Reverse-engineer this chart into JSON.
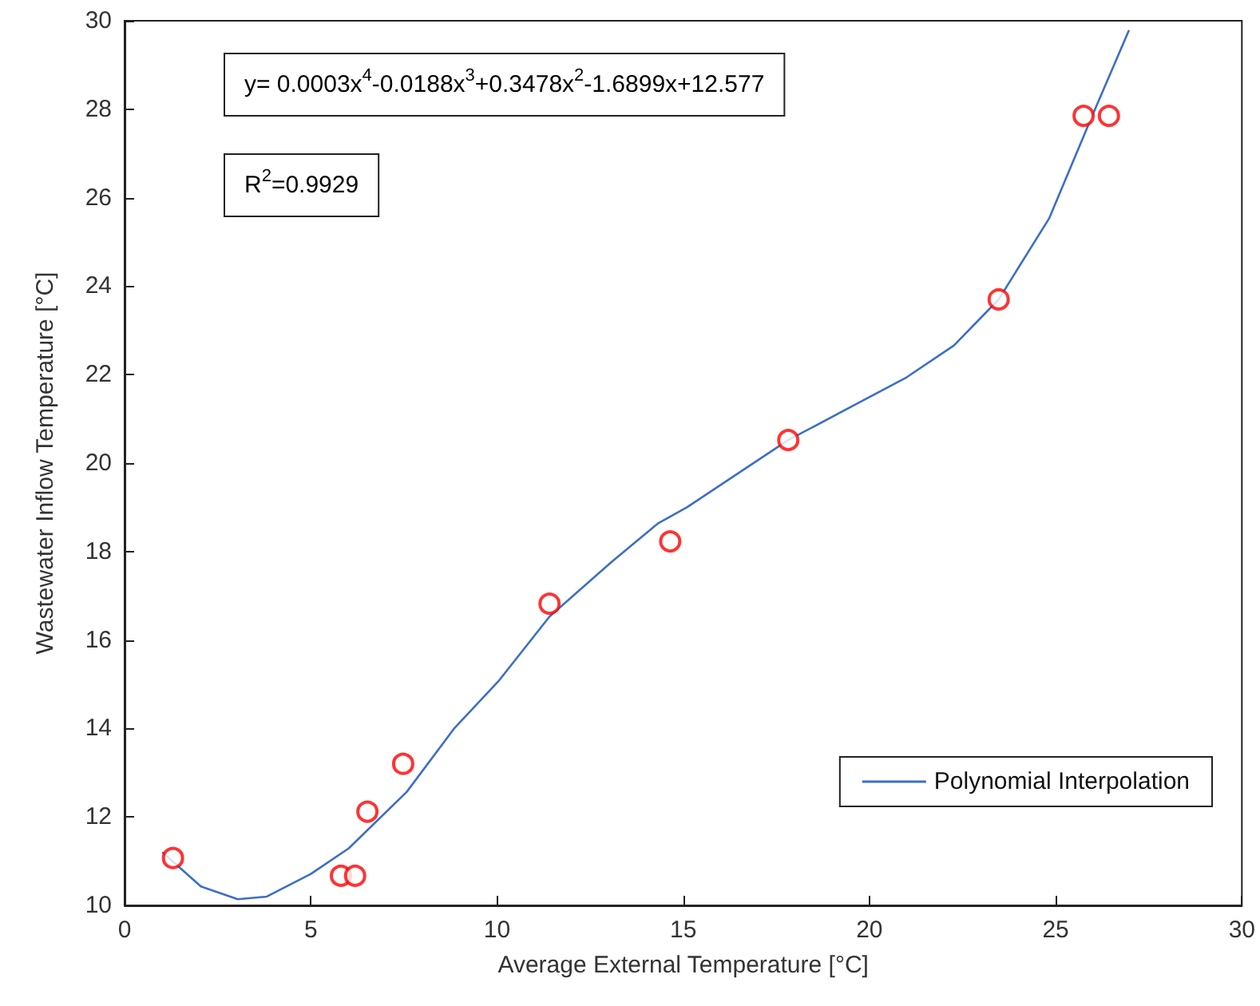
{
  "chart_data": {
    "type": "scatter",
    "xlabel": "Average External Temperature [°C]",
    "ylabel": "Wastewater Inflow Temperature [°C]",
    "xlim": [
      0,
      30
    ],
    "xticks": [
      0,
      5,
      10,
      15,
      20,
      25,
      30
    ],
    "ylim": [
      10,
      30
    ],
    "yticks": [
      10,
      12,
      14,
      16,
      18,
      20,
      22,
      24,
      26,
      28,
      30
    ],
    "grid": false,
    "legend": "bottom right",
    "annotations": [
      "y= 0.0003x$^{4}$-0.0188x$^{3}$+0.3478x$^{2}$-1.6899x+12.577",
      "R$^{2}$=0.9929"
    ],
    "series": [
      {
        "color": "#ff0000",
        "marker": "circle",
        "x": [
          1.3,
          5.81,
          6.19,
          6.52,
          7.48,
          11.41,
          14.65,
          17.82,
          23.47,
          25.75,
          26.43
        ],
        "values": [
          11.07,
          10.67,
          10.67,
          12.12,
          13.2,
          16.82,
          18.23,
          20.52,
          23.7,
          27.85,
          27.85
        ]
      },
      {
        "type": "line",
        "name": "Polynomial Interpolation",
        "color": "#3c6fc4",
        "marker": "none",
        "line_style": "solid",
        "x": [
          1.03,
          2.05,
          3.04,
          3.82,
          5.0,
          6.02,
          7.58,
          8.86,
          10.06,
          11.41,
          13.11,
          14.33,
          15.1,
          17.82,
          21.0,
          22.27,
          23.47,
          24.83,
          25.97,
          26.96
        ],
        "values": [
          11.19,
          10.43,
          10.14,
          10.2,
          10.71,
          11.29,
          12.57,
          14.01,
          15.09,
          16.53,
          17.79,
          18.64,
          19.0,
          20.52,
          21.94,
          22.66,
          23.7,
          25.54,
          27.83,
          29.77
        ]
      }
    ]
  }
}
